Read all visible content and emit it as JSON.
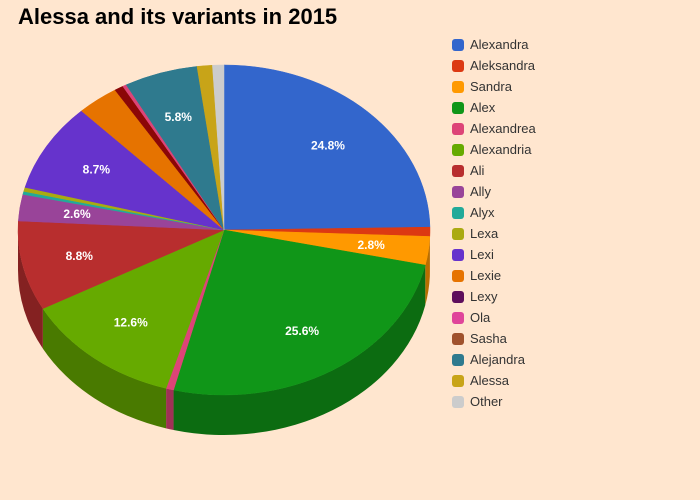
{
  "chart_data": {
    "type": "pie",
    "title": "Alessa and its variants in 2015",
    "legend_position": "right",
    "slices": [
      {
        "name": "Alexandra",
        "value": 24.8,
        "color": "#3366cc",
        "label": "24.8%"
      },
      {
        "name": "Aleksandra",
        "value": 0.9,
        "color": "#dc3912",
        "label": ""
      },
      {
        "name": "Sandra",
        "value": 2.8,
        "color": "#ff9900",
        "label": "2.8%"
      },
      {
        "name": "Alex",
        "value": 25.6,
        "color": "#109618",
        "label": "25.6%"
      },
      {
        "name": "Alexandrea",
        "value": 0.6,
        "color": "#dd4477",
        "label": ""
      },
      {
        "name": "Alexandria",
        "value": 12.6,
        "color": "#66aa00",
        "label": "12.6%"
      },
      {
        "name": "Ali",
        "value": 8.8,
        "color": "#b82e2e",
        "label": "8.8%"
      },
      {
        "name": "Ally",
        "value": 2.6,
        "color": "#994499",
        "label": "2.6%"
      },
      {
        "name": "Alyx",
        "value": 0.3,
        "color": "#22aa99",
        "label": ""
      },
      {
        "name": "Lexa",
        "value": 0.4,
        "color": "#aaaa11",
        "label": ""
      },
      {
        "name": "Lexi",
        "value": 8.7,
        "color": "#6633cc",
        "label": "8.7%"
      },
      {
        "name": "Lexie",
        "value": 3.3,
        "color": "#e67300",
        "label": ""
      },
      {
        "name": "Lexy",
        "value": 0.7,
        "color": "#8b0707",
        "label": ""
      },
      {
        "name": "Ola",
        "value": 0.3,
        "color": "#dd4477",
        "label": ""
      },
      {
        "name": "Sasha",
        "value": 0.0,
        "color": "#a0522d",
        "label": ""
      },
      {
        "name": "Alejandra",
        "value": 5.8,
        "color": "#2f7a8e",
        "label": "5.8%"
      },
      {
        "name": "Alessa",
        "value": 1.2,
        "color": "#c8a418",
        "label": ""
      },
      {
        "name": "Other",
        "value": 0.9,
        "color": "#cccccc",
        "label": ""
      }
    ],
    "legend_colors": [
      "#3366cc",
      "#dc3912",
      "#ff9900",
      "#109618",
      "#dd4477",
      "#66aa00",
      "#b82e2e",
      "#994499",
      "#22aa99",
      "#aaaa11",
      "#6633cc",
      "#e67300",
      "#5e0f5c",
      "#e0459a",
      "#a0522d",
      "#2f7a8e",
      "#c8a418",
      "#cccccc"
    ]
  }
}
